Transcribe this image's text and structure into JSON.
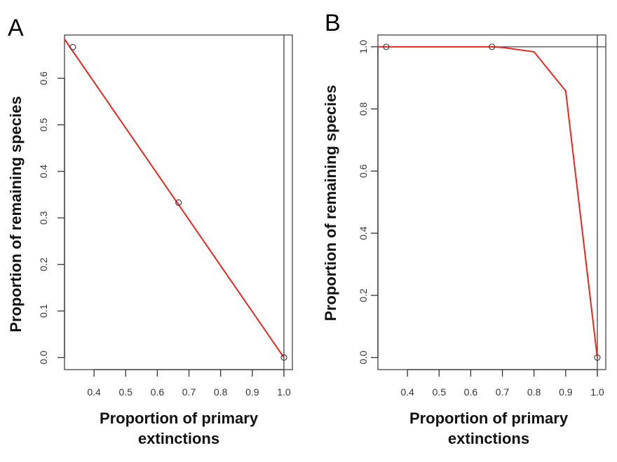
{
  "chart_data": [
    {
      "panel": "A",
      "type": "line",
      "xlabel": "Proportion of primary extinctions",
      "ylabel": "Proportion of remaining species",
      "xlim": [
        0.3067,
        1.0267
      ],
      "ylim": [
        -0.026,
        0.693
      ],
      "xticks": [
        0.4,
        0.5,
        0.6,
        0.7,
        0.8,
        0.9,
        1.0
      ],
      "xtick_labels": [
        "0.4",
        "0.5",
        "0.6",
        "0.7",
        "0.8",
        "0.9",
        "1.0"
      ],
      "yticks": [
        0.0,
        0.1,
        0.2,
        0.3,
        0.4,
        0.5,
        0.6
      ],
      "ytick_labels": [
        "0.0",
        "0.1",
        "0.2",
        "0.3",
        "0.4",
        "0.5",
        "0.6"
      ],
      "points": {
        "x": [
          0.333,
          0.667,
          1.0
        ],
        "y": [
          0.667,
          0.333,
          0.0
        ]
      },
      "line": {
        "x": [
          0.3067,
          1.0
        ],
        "y": [
          0.684,
          0.0
        ]
      },
      "ref_vline": 1.0,
      "ref_hline": null,
      "line_color": "#e8281e"
    },
    {
      "panel": "B",
      "type": "line",
      "xlabel": "Proportion of primary extinctions",
      "ylabel": "Proportion of remaining species",
      "xlim": [
        0.3067,
        1.0267
      ],
      "ylim": [
        -0.039,
        1.038
      ],
      "xticks": [
        0.4,
        0.5,
        0.6,
        0.7,
        0.8,
        0.9,
        1.0
      ],
      "xtick_labels": [
        "0.4",
        "0.5",
        "0.6",
        "0.7",
        "0.8",
        "0.9",
        "1.0"
      ],
      "yticks": [
        0.0,
        0.2,
        0.4,
        0.6,
        0.8,
        1.0
      ],
      "ytick_labels": [
        "0.0",
        "0.2",
        "0.4",
        "0.6",
        "0.8",
        "1.0"
      ],
      "points": {
        "x": [
          0.333,
          0.667,
          1.0
        ],
        "y": [
          1.0,
          1.0,
          0.0
        ]
      },
      "line": {
        "x": [
          0.3067,
          0.333,
          0.667,
          0.7,
          0.8,
          0.9,
          1.0
        ],
        "y": [
          1.0,
          1.0,
          1.0,
          0.998,
          0.984,
          0.858,
          0.0
        ]
      },
      "ref_vline": 1.0,
      "ref_hline": 1.0,
      "line_color": "#e8281e"
    }
  ],
  "panels": {
    "a": {
      "label": "A",
      "xlabel_line1": "Proportion of primary",
      "xlabel_line2": "extinctions",
      "ylabel": "Proportion of remaining species"
    },
    "b": {
      "label": "B",
      "xlabel_line1": "Proportion of primary",
      "xlabel_line2": "extinctions",
      "ylabel": "Proportion of remaining species"
    }
  }
}
